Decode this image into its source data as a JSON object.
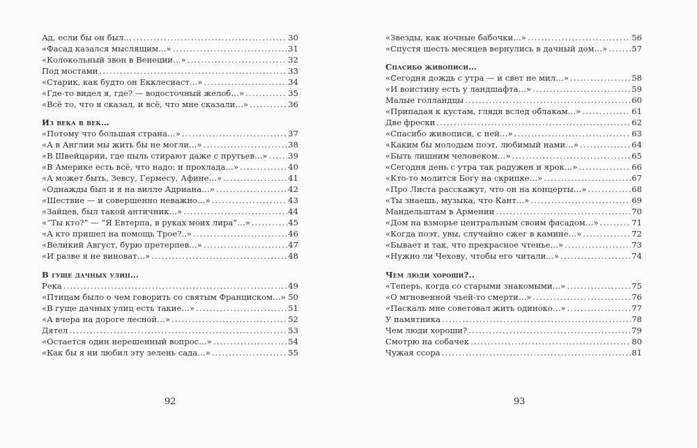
{
  "left_page": {
    "page_number": "92",
    "sections": [
      {
        "heading": "",
        "entries": [
          {
            "title": "Ад, если бы он был…",
            "page": "30"
          },
          {
            "title": "«Фасад казался мыслящим…»",
            "page": "31"
          },
          {
            "title": "«Колокольный звон в Венеции…»",
            "page": "32"
          },
          {
            "title": "Под мостами",
            "page": "33"
          },
          {
            "title": "«Старик, как будто он Екклесиаст…»",
            "page": "34"
          },
          {
            "title": "«Где-то видел я, где? — водосточный желоб…»",
            "page": "35"
          },
          {
            "title": "«Всё то, что я сказал, и всё, что мне сказали…»",
            "page": "36"
          }
        ]
      },
      {
        "heading": "Из века в век…",
        "entries": [
          {
            "title": "«Потому что большая страна…»",
            "page": "37"
          },
          {
            "title": "«А в Англии мы жить бы не могли…»",
            "page": "38"
          },
          {
            "title": "«В Швейцарии, где пыль стирают даже с прутьев…»",
            "page": "39"
          },
          {
            "title": "«В Америке есть всё, что надо: и прохлада…»",
            "page": "40"
          },
          {
            "title": "«А может быть, Зевсу, Гермесу, Афине…»",
            "page": "41"
          },
          {
            "title": "«Однажды был и я на вилле Адриана…»",
            "page": "42"
          },
          {
            "title": "«Шествие — и совершенно неважно…»",
            "page": "43"
          },
          {
            "title": "«Зайцев, был такой античник…»",
            "page": "44"
          },
          {
            "title": "«“Ты кто?” — “Я Евтерпа, в руках моих лира”…»",
            "page": "45"
          },
          {
            "title": "«А кто пришел на помощь Трое?..»",
            "page": "46"
          },
          {
            "title": "«Великий Август, бурю претерпев…»",
            "page": "47"
          },
          {
            "title": "«И разве я не виноват…»",
            "page": "48"
          }
        ]
      },
      {
        "heading": "В гуще дачных улиц…",
        "entries": [
          {
            "title": "Река",
            "page": "49"
          },
          {
            "title": "«Птицам было о чем говорить со святым Франциском…»",
            "page": "50"
          },
          {
            "title": "«В гуще дачных улиц есть такие…»",
            "page": "51"
          },
          {
            "title": "«А вчера на дороге лесной…»",
            "page": "52"
          },
          {
            "title": "Дятел",
            "page": "53"
          },
          {
            "title": "«Остается один нерешенный вопрос…»",
            "page": "54"
          },
          {
            "title": "«Как бы я ни любил эту зелень сада…»",
            "page": "55"
          }
        ]
      }
    ]
  },
  "right_page": {
    "page_number": "93",
    "sections": [
      {
        "heading": "",
        "entries": [
          {
            "title": "«Звезды, как ночные бабочки…»",
            "page": "56"
          },
          {
            "title": "«Спустя шесть месяцев вернулись в дачный дом…»",
            "page": "57"
          }
        ]
      },
      {
        "heading": "Спасибо живописи…",
        "entries": [
          {
            "title": "«Сегодня дождь с утра — и свет не мил…»",
            "page": "58"
          },
          {
            "title": "«И воистину есть у ландшафта…»",
            "page": "59"
          },
          {
            "title": "Малые голландцы",
            "page": "60"
          },
          {
            "title": "«Припадая к кустам, глядя вслед облакам…»",
            "page": "61"
          },
          {
            "title": "Две фрески",
            "page": "62"
          },
          {
            "title": "«Спасибо живописи, с ней…»",
            "page": "63"
          },
          {
            "title": "«Каким бы молодым поэт, любимый нами…»",
            "page": "64"
          },
          {
            "title": "«Быть лишним человеком…»",
            "page": "65"
          },
          {
            "title": "«Сегодня день с утра так радужен и ярок…»",
            "page": "66"
          },
          {
            "title": "«Кто-то молится Богу на скрипке…»",
            "page": "67"
          },
          {
            "title": "«Про Листа расскажут, что он на концерты…»",
            "page": "68"
          },
          {
            "title": "«Ты знаешь, музыка, что Кант…»",
            "page": "69"
          },
          {
            "title": "Мандельштам в Армении",
            "page": "70"
          },
          {
            "title": "«Дом на взморье центральным своим фасадом…»",
            "page": "71"
          },
          {
            "title": "«Когда поэт, увы, случайно сжег в камине…»",
            "page": "72"
          },
          {
            "title": "«Бывает и так, что прекрасное чтенье…»",
            "page": "73"
          },
          {
            "title": "«Нужно ли Чехову, чтобы его читали…»",
            "page": "74"
          }
        ]
      },
      {
        "heading": "Чем люди хороши?..",
        "entries": [
          {
            "title": "«Теперь, когда со старыми знакомыми…»",
            "page": "75"
          },
          {
            "title": "«О мгновенной чьей-то смерти…»",
            "page": "76"
          },
          {
            "title": "«Паскаль мне советовал жить одиноко…»",
            "page": "77"
          },
          {
            "title": "У памятника",
            "page": "78"
          },
          {
            "title": "Чем люди хороши?",
            "page": "79"
          },
          {
            "title": "Смотрю на собачек",
            "page": "80"
          },
          {
            "title": "Чужая ссора",
            "page": "81"
          }
        ]
      }
    ]
  }
}
